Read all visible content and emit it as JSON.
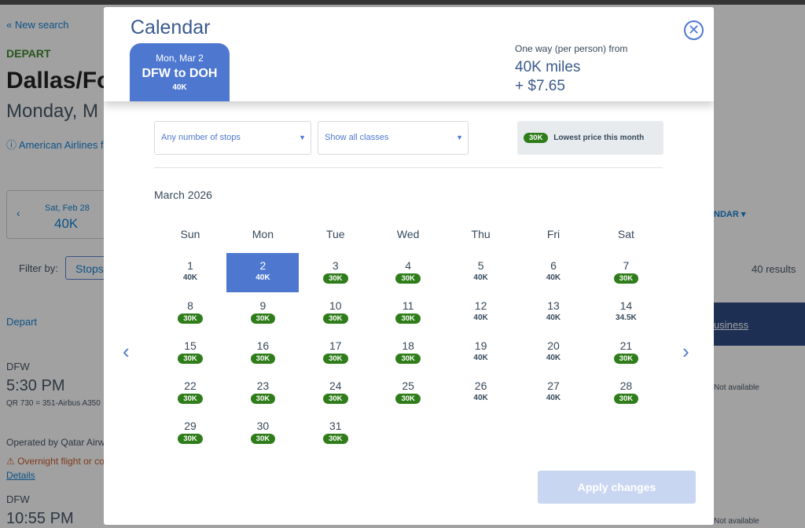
{
  "background": {
    "new_search": "« New search",
    "depart_label": "DEPART",
    "city": "Dallas/Fo",
    "date": "Monday, M",
    "notice": "ⓘ American Airlines f",
    "prev_date": "Sat, Feb 28",
    "prev_price": "40K",
    "calendar_toggle": "NDAR ▾",
    "filter_label": "Filter by:",
    "filter_stops": "Stops",
    "results": "40 results",
    "sort_depart": "Depart",
    "sort_business": "usiness",
    "flights": [
      {
        "airport": "DFW",
        "time": "5:30 PM",
        "flight": "QR 730 = 351-Airbus A350",
        "operated": "Operated by Qatar Airwa",
        "warning": "⚠ Overnight flight or co",
        "details": "Details",
        "business": "Not available"
      },
      {
        "airport": "DFW",
        "time": "10:55 PM",
        "business": "Not available"
      }
    ]
  },
  "modal": {
    "title": "Calendar",
    "selected_tab": {
      "date": "Mon, Mar 2",
      "route": "DFW to DOH",
      "price": "40K"
    },
    "price_summary": {
      "label": "One way (per person) from",
      "miles": "40K miles",
      "taxes": "+ $7.65"
    },
    "stops_select": "Any number of stops",
    "class_select": "Show all classes",
    "legend": {
      "badge": "30K",
      "label": "Lowest price this month"
    },
    "month": "March 2026",
    "weekdays": [
      "Sun",
      "Mon",
      "Tue",
      "Wed",
      "Thu",
      "Fri",
      "Sat"
    ],
    "start_weekday": 0,
    "selected_day": 2,
    "days": [
      {
        "day": "1",
        "price": "40K",
        "lowest": false
      },
      {
        "day": "2",
        "price": "40K",
        "lowest": false
      },
      {
        "day": "3",
        "price": "30K",
        "lowest": true
      },
      {
        "day": "4",
        "price": "30K",
        "lowest": true
      },
      {
        "day": "5",
        "price": "40K",
        "lowest": false
      },
      {
        "day": "6",
        "price": "40K",
        "lowest": false
      },
      {
        "day": "7",
        "price": "30K",
        "lowest": true
      },
      {
        "day": "8",
        "price": "30K",
        "lowest": true
      },
      {
        "day": "9",
        "price": "30K",
        "lowest": true
      },
      {
        "day": "10",
        "price": "30K",
        "lowest": true
      },
      {
        "day": "11",
        "price": "30K",
        "lowest": true
      },
      {
        "day": "12",
        "price": "40K",
        "lowest": false
      },
      {
        "day": "13",
        "price": "40K",
        "lowest": false
      },
      {
        "day": "14",
        "price": "34.5K",
        "lowest": false
      },
      {
        "day": "15",
        "price": "30K",
        "lowest": true
      },
      {
        "day": "16",
        "price": "30K",
        "lowest": true
      },
      {
        "day": "17",
        "price": "30K",
        "lowest": true
      },
      {
        "day": "18",
        "price": "30K",
        "lowest": true
      },
      {
        "day": "19",
        "price": "40K",
        "lowest": false
      },
      {
        "day": "20",
        "price": "40K",
        "lowest": false
      },
      {
        "day": "21",
        "price": "30K",
        "lowest": true
      },
      {
        "day": "22",
        "price": "30K",
        "lowest": true
      },
      {
        "day": "23",
        "price": "30K",
        "lowest": true
      },
      {
        "day": "24",
        "price": "30K",
        "lowest": true
      },
      {
        "day": "25",
        "price": "30K",
        "lowest": true
      },
      {
        "day": "26",
        "price": "40K",
        "lowest": false
      },
      {
        "day": "27",
        "price": "40K",
        "lowest": false
      },
      {
        "day": "28",
        "price": "30K",
        "lowest": true
      },
      {
        "day": "29",
        "price": "30K",
        "lowest": true
      },
      {
        "day": "30",
        "price": "30K",
        "lowest": true
      },
      {
        "day": "31",
        "price": "30K",
        "lowest": true
      }
    ],
    "apply_label": "Apply changes"
  }
}
